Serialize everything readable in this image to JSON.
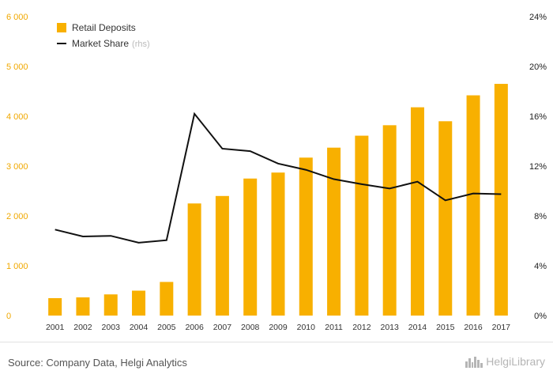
{
  "chart_data": {
    "type": "bar",
    "categories": [
      "2001",
      "2002",
      "2003",
      "2004",
      "2005",
      "2006",
      "2007",
      "2008",
      "2009",
      "2010",
      "2011",
      "2012",
      "2013",
      "2014",
      "2015",
      "2016",
      "2017"
    ],
    "series": [
      {
        "name": "Retail Deposits",
        "type": "bar",
        "axis": "left",
        "values": [
          350,
          365,
          425,
          500,
          675,
          2250,
          2400,
          2750,
          2870,
          3170,
          3370,
          3610,
          3820,
          4180,
          3900,
          4420,
          4650
        ]
      },
      {
        "name": "Market Share",
        "name_suffix": "(rhs)",
        "type": "line",
        "axis": "right",
        "values": [
          6.9,
          6.35,
          6.4,
          5.85,
          6.05,
          16.2,
          13.4,
          13.2,
          12.2,
          11.7,
          10.95,
          10.55,
          10.2,
          10.75,
          9.25,
          9.8,
          9.75
        ]
      }
    ],
    "ylim_left": [
      0,
      6000
    ],
    "ylim_right": [
      0,
      24
    ],
    "yticks_left": [
      "0",
      "1 000",
      "2 000",
      "3 000",
      "4 000",
      "5 000",
      "6 000"
    ],
    "yticks_right": [
      "0%",
      "4%",
      "8%",
      "12%",
      "16%",
      "20%",
      "24%"
    ],
    "xlabel": "",
    "ylabel": "",
    "grid": false,
    "legend_position": "top-left",
    "colors": {
      "bars": "#f8b000",
      "line": "#111111",
      "left_ticks": "#f0a800",
      "right_ticks": "#222222"
    }
  },
  "footer": {
    "source": "Source: Company Data, Helgi Analytics",
    "brand_name": "HelgiLibrary",
    "brand_icon": "city-skyline-icon"
  }
}
